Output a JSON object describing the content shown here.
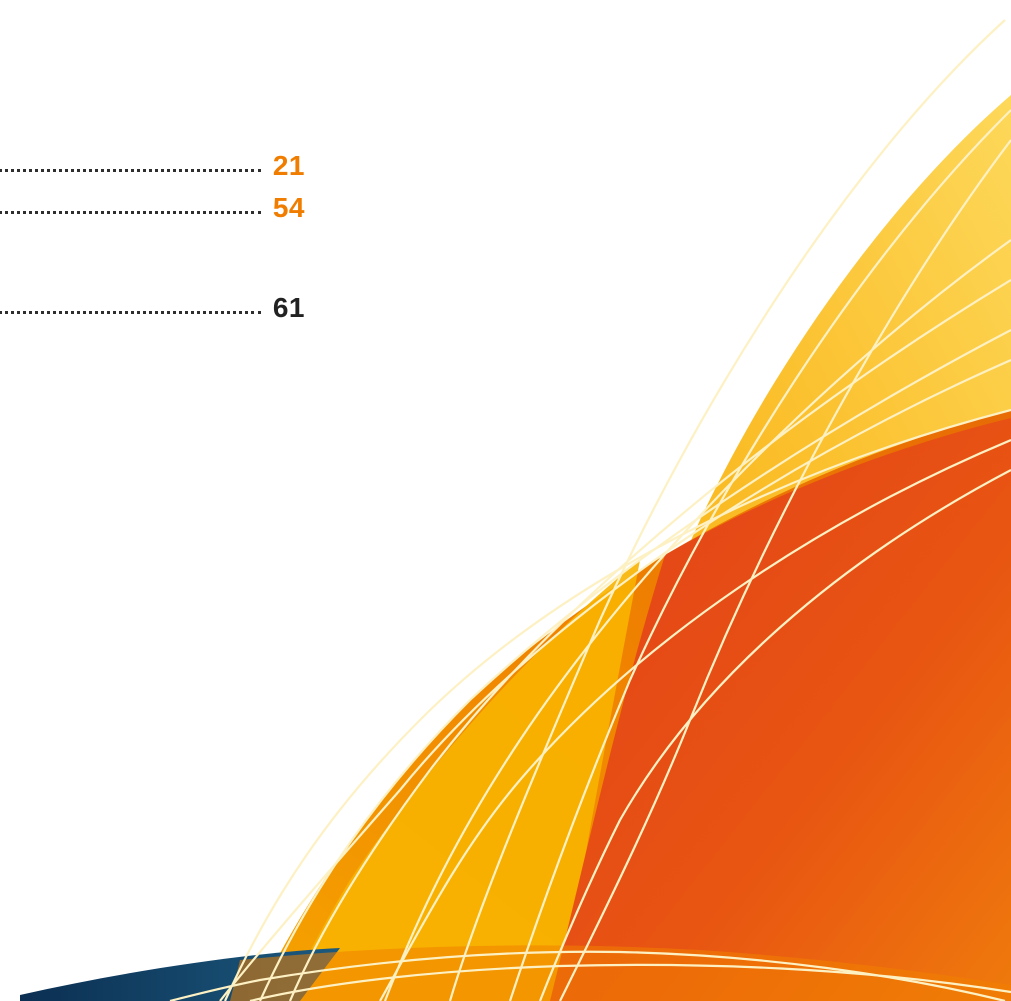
{
  "toc": {
    "entries": [
      {
        "page": "21",
        "color": "#f07d00"
      },
      {
        "page": "54",
        "color": "#f07d00"
      },
      {
        "page": "61",
        "color": "#222222"
      }
    ]
  },
  "decoration": {
    "colors": {
      "yellow": "#fbc02d",
      "orange": "#f28c00",
      "red_orange": "#e54e12",
      "navy": "#0f3b5f",
      "line": "#fdf1c4"
    }
  }
}
